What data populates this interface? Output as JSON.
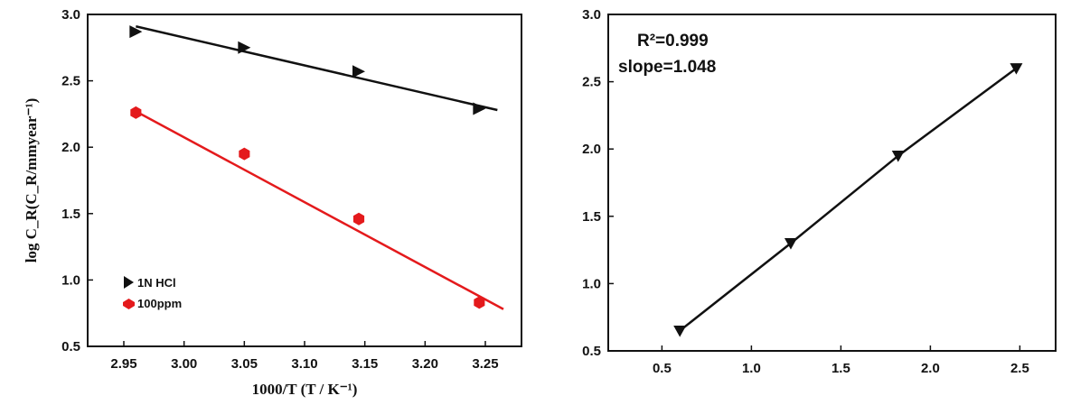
{
  "chart_data": [
    {
      "type": "scatter",
      "xlabel": "1000/T (T / K⁻¹)",
      "ylabel": "log C_R(C_R/mmyear⁻¹)",
      "xlim": [
        2.92,
        3.28
      ],
      "ylim": [
        0.5,
        3.0
      ],
      "xticks": [
        "2.95",
        "3.00",
        "3.05",
        "3.10",
        "3.15",
        "3.20",
        "3.25"
      ],
      "yticks": [
        "0.5",
        "1.0",
        "1.5",
        "2.0",
        "2.5",
        "3.0"
      ],
      "legend_position": "bottom-left",
      "grid": false,
      "series": [
        {
          "name": "1N HCl",
          "marker": "triangle-right",
          "color": "#111111",
          "x": [
            2.96,
            3.05,
            3.145,
            3.245
          ],
          "y": [
            2.87,
            2.75,
            2.57,
            2.29
          ],
          "fit": {
            "x": [
              2.96,
              3.26
            ],
            "y": [
              2.91,
              2.28
            ]
          }
        },
        {
          "name": "100ppm",
          "marker": "hexagon",
          "color": "#e41a1c",
          "x": [
            2.96,
            3.05,
            3.145,
            3.245
          ],
          "y": [
            2.26,
            1.95,
            1.46,
            0.83
          ],
          "fit": {
            "x": [
              2.96,
              3.265
            ],
            "y": [
              2.27,
              0.78
            ]
          }
        }
      ]
    },
    {
      "type": "line",
      "xlabel": "",
      "ylabel": "",
      "xlim": [
        0.2,
        2.7
      ],
      "ylim": [
        0.5,
        3.0
      ],
      "xticks": [
        "0.5",
        "1.0",
        "1.5",
        "2.0",
        "2.5"
      ],
      "yticks": [
        "0.5",
        "1.0",
        "1.5",
        "2.0",
        "2.5",
        "3.0"
      ],
      "grid": false,
      "annotations": [
        "R²=0.999",
        "slope=1.048"
      ],
      "series": [
        {
          "marker": "triangle-down",
          "color": "#111111",
          "x": [
            0.6,
            1.22,
            1.82,
            2.48
          ],
          "y": [
            0.65,
            1.3,
            1.95,
            2.6
          ]
        }
      ]
    }
  ]
}
